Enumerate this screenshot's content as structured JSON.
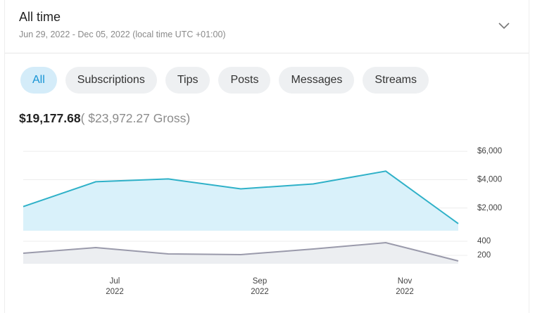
{
  "header": {
    "title": "All time",
    "subtitle": "Jun 29, 2022 - Dec 05, 2022 (local time UTC +01:00)"
  },
  "tabs": [
    "All",
    "Subscriptions",
    "Tips",
    "Posts",
    "Messages",
    "Streams"
  ],
  "summary": {
    "net": "$19,177.68",
    "gross": "( $23,972.27 Gross)"
  },
  "chart_data": [
    {
      "type": "area",
      "categories": [
        null,
        "Jul 2022",
        null,
        "Sep 2022",
        null,
        "Nov 2022",
        null
      ],
      "values": [
        2100,
        3850,
        4050,
        3350,
        3700,
        4600,
        900
      ],
      "color": "#2fb1c8",
      "fill": "#d9f1fa",
      "ylim": [
        400,
        6450
      ],
      "yticks": [
        {
          "value": 2000,
          "label": "$2,000"
        },
        {
          "value": 4000,
          "label": "$4,000"
        },
        {
          "value": 6000,
          "label": "$6,000"
        }
      ],
      "grid": true
    },
    {
      "type": "line",
      "values": [
        230,
        310,
        220,
        210,
        290,
        380,
        120
      ],
      "color": "#9a9aab",
      "fill": "#eceef1",
      "ylim": [
        80,
        500
      ],
      "yticks": [
        200,
        400
      ],
      "grid": true
    }
  ]
}
